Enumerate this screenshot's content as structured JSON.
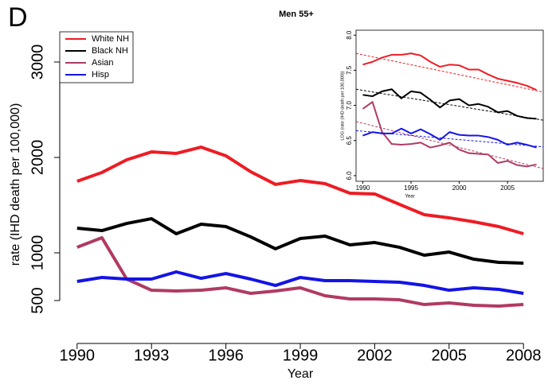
{
  "chart_data": [
    {
      "type": "line",
      "panel_label": "D",
      "title": "Men 55+",
      "xlabel": "Year",
      "ylabel": "rate (IHD death per 100,000)",
      "x": [
        1990,
        1991,
        1992,
        1993,
        1994,
        1995,
        1996,
        1997,
        1998,
        1999,
        2000,
        2001,
        2002,
        2003,
        2004,
        2005,
        2006,
        2007,
        2008
      ],
      "xlim": [
        1989.3,
        2008.7
      ],
      "xticks": [
        1990,
        1993,
        1996,
        1999,
        2002,
        2005,
        2008
      ],
      "ylim": [
        50,
        3300
      ],
      "yticks": [
        500,
        1000,
        2000,
        3000
      ],
      "legend": "top-left",
      "series": [
        {
          "name": "White NH",
          "color": "#ee1c24",
          "values": [
            1750,
            1842,
            1975,
            2058,
            2042,
            2108,
            2017,
            1850,
            1717,
            1758,
            1725,
            1625,
            1617,
            1508,
            1400,
            1367,
            1325,
            1275,
            1200
          ]
        },
        {
          "name": "Black NH",
          "color": "#000000",
          "values": [
            1258,
            1233,
            1308,
            1358,
            1200,
            1300,
            1275,
            1167,
            1042,
            1150,
            1175,
            1083,
            1108,
            1058,
            975,
            1008,
            933,
            900,
            892
          ]
        },
        {
          "name": "Asian",
          "color": "#b03a63",
          "values": [
            1058,
            1158,
            725,
            608,
            600,
            608,
            633,
            575,
            600,
            633,
            550,
            517,
            517,
            508,
            458,
            475,
            450,
            442,
            458
          ]
        },
        {
          "name": "Hisp",
          "color": "#1414e6",
          "values": [
            700,
            742,
            725,
            725,
            800,
            733,
            783,
            725,
            658,
            742,
            708,
            708,
            700,
            692,
            658,
            608,
            633,
            617,
            575
          ]
        }
      ]
    },
    {
      "type": "line",
      "xlabel": "Year",
      "ylabel": "LOG (rate (IHD death per 100,000))",
      "x": [
        1990,
        1991,
        1992,
        1993,
        1994,
        1995,
        1996,
        1997,
        1998,
        1999,
        2000,
        2001,
        2002,
        2003,
        2004,
        2005,
        2006,
        2007,
        2008
      ],
      "xlim": [
        1989.3,
        2008.7
      ],
      "xticks": [
        1990,
        1995,
        2000,
        2005
      ],
      "ylim": [
        5.92,
        8.07
      ],
      "yticks": [
        {
          "value": 6,
          "label": "6.0"
        },
        {
          "value": 6.5,
          "label": "6.5"
        },
        {
          "value": 7,
          "label": "7.0"
        },
        {
          "value": 7.5,
          "label": "7.5"
        },
        {
          "value": 8,
          "label": "8.0"
        }
      ],
      "series": [
        {
          "color": "#ee1c24",
          "values": [
            7.58,
            7.62,
            7.68,
            7.72,
            7.72,
            7.74,
            7.71,
            7.62,
            7.55,
            7.58,
            7.57,
            7.51,
            7.51,
            7.44,
            7.38,
            7.35,
            7.32,
            7.28,
            7.22
          ],
          "trend": {
            "x": [
              1989.3,
              2008.7
            ],
            "values": [
              7.74,
              7.19
            ]
          }
        },
        {
          "color": "#000000",
          "values": [
            7.15,
            7.13,
            7.2,
            7.23,
            7.1,
            7.2,
            7.18,
            7.08,
            6.97,
            7.07,
            7.09,
            7.0,
            7.02,
            6.98,
            6.9,
            6.92,
            6.85,
            6.82,
            6.81
          ],
          "trend": {
            "x": [
              1989.3,
              2008.7
            ],
            "values": [
              7.23,
              6.79
            ]
          }
        },
        {
          "color": "#b03a63",
          "values": [
            6.95,
            7.05,
            6.62,
            6.45,
            6.44,
            6.45,
            6.47,
            6.4,
            6.43,
            6.47,
            6.37,
            6.32,
            6.31,
            6.3,
            6.18,
            6.21,
            6.15,
            6.13,
            6.16
          ],
          "trend": {
            "x": [
              1989.3,
              2008.7
            ],
            "values": [
              6.77,
              6.1
            ]
          }
        },
        {
          "color": "#1414e6",
          "values": [
            6.57,
            6.62,
            6.6,
            6.6,
            6.67,
            6.6,
            6.66,
            6.59,
            6.51,
            6.62,
            6.58,
            6.57,
            6.57,
            6.55,
            6.51,
            6.44,
            6.47,
            6.44,
            6.4
          ],
          "trend": {
            "x": [
              1989.3,
              2008.7
            ],
            "values": [
              6.64,
              6.41
            ]
          }
        }
      ]
    }
  ]
}
